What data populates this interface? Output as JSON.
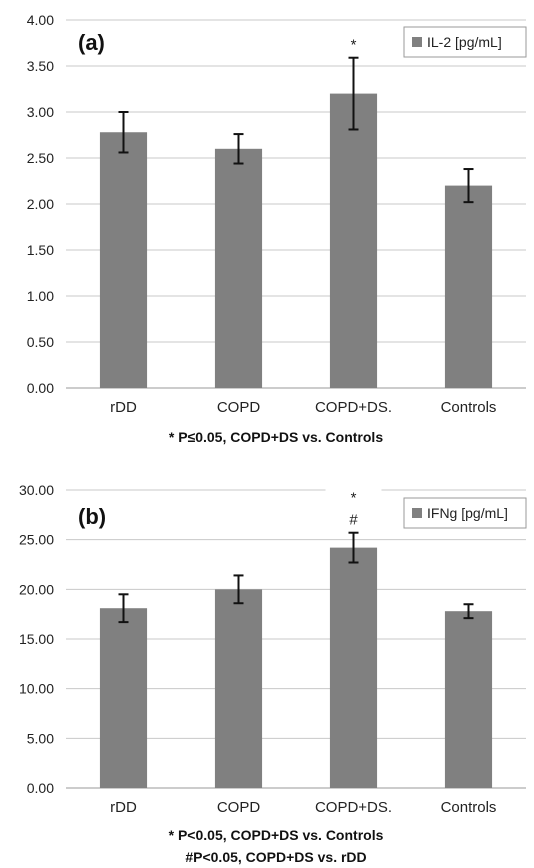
{
  "chart_data": [
    {
      "type": "bar",
      "panel_label": "(a)",
      "categories": [
        "rDD",
        "COPD",
        "COPD+DS.",
        "Controls"
      ],
      "series": [
        {
          "name": "IL-2 [pg/mL]",
          "values": [
            2.78,
            2.6,
            3.2,
            2.2
          ],
          "error": [
            0.22,
            0.16,
            0.39,
            0.18
          ]
        }
      ],
      "ylim": [
        0,
        4
      ],
      "yticks": [
        "0.00",
        "0.50",
        "1.00",
        "1.50",
        "2.00",
        "2.50",
        "3.00",
        "3.50",
        "4.00"
      ],
      "annotations": [
        {
          "category": "COPD+DS.",
          "lines": [
            "*"
          ]
        }
      ],
      "footnotes": [
        "* P≤0.05, COPD+DS vs. Controls"
      ],
      "grid": true,
      "legend_position": "top-right",
      "bar_color": "#808080"
    },
    {
      "type": "bar",
      "panel_label": "(b)",
      "categories": [
        "rDD",
        "COPD",
        "COPD+DS.",
        "Controls"
      ],
      "series": [
        {
          "name": "IFNg [pg/mL]",
          "values": [
            18.1,
            20.0,
            24.2,
            17.8
          ],
          "error": [
            1.4,
            1.4,
            1.5,
            0.7
          ]
        }
      ],
      "ylim": [
        0,
        30
      ],
      "yticks": [
        "0.00",
        "5.00",
        "10.00",
        "15.00",
        "20.00",
        "25.00",
        "30.00"
      ],
      "annotations": [
        {
          "category": "COPD+DS.",
          "lines": [
            "*",
            "#"
          ]
        }
      ],
      "footnotes": [
        "* P<0.05, COPD+DS vs. Controls",
        "#P<0.05, COPD+DS vs. rDD"
      ],
      "grid": true,
      "legend_position": "top-right",
      "bar_color": "#808080"
    }
  ]
}
